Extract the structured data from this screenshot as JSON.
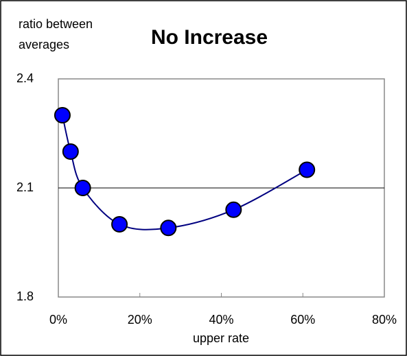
{
  "chart_data": {
    "type": "line",
    "title": "No Increase",
    "y_label": "ratio between averages",
    "x_label": "upper rate",
    "x": [
      1,
      3,
      6,
      15,
      27,
      43,
      61
    ],
    "series": [
      {
        "color": "#0000ff",
        "line_color": "#000080",
        "values": [
          2.3,
          2.2,
          2.1,
          2.0,
          1.99,
          2.04,
          2.15
        ]
      }
    ],
    "xlim": [
      0,
      80
    ],
    "xticks": [
      {
        "value": 0,
        "label": "0%"
      },
      {
        "value": 20,
        "label": "20%"
      },
      {
        "value": 40,
        "label": "40%"
      },
      {
        "value": 60,
        "label": "60%"
      },
      {
        "value": 80,
        "label": "80%"
      }
    ],
    "ylim": [
      1.8,
      2.4
    ],
    "yticks": [
      1.8,
      2.1,
      2.4
    ],
    "reference_line": 2.1
  }
}
